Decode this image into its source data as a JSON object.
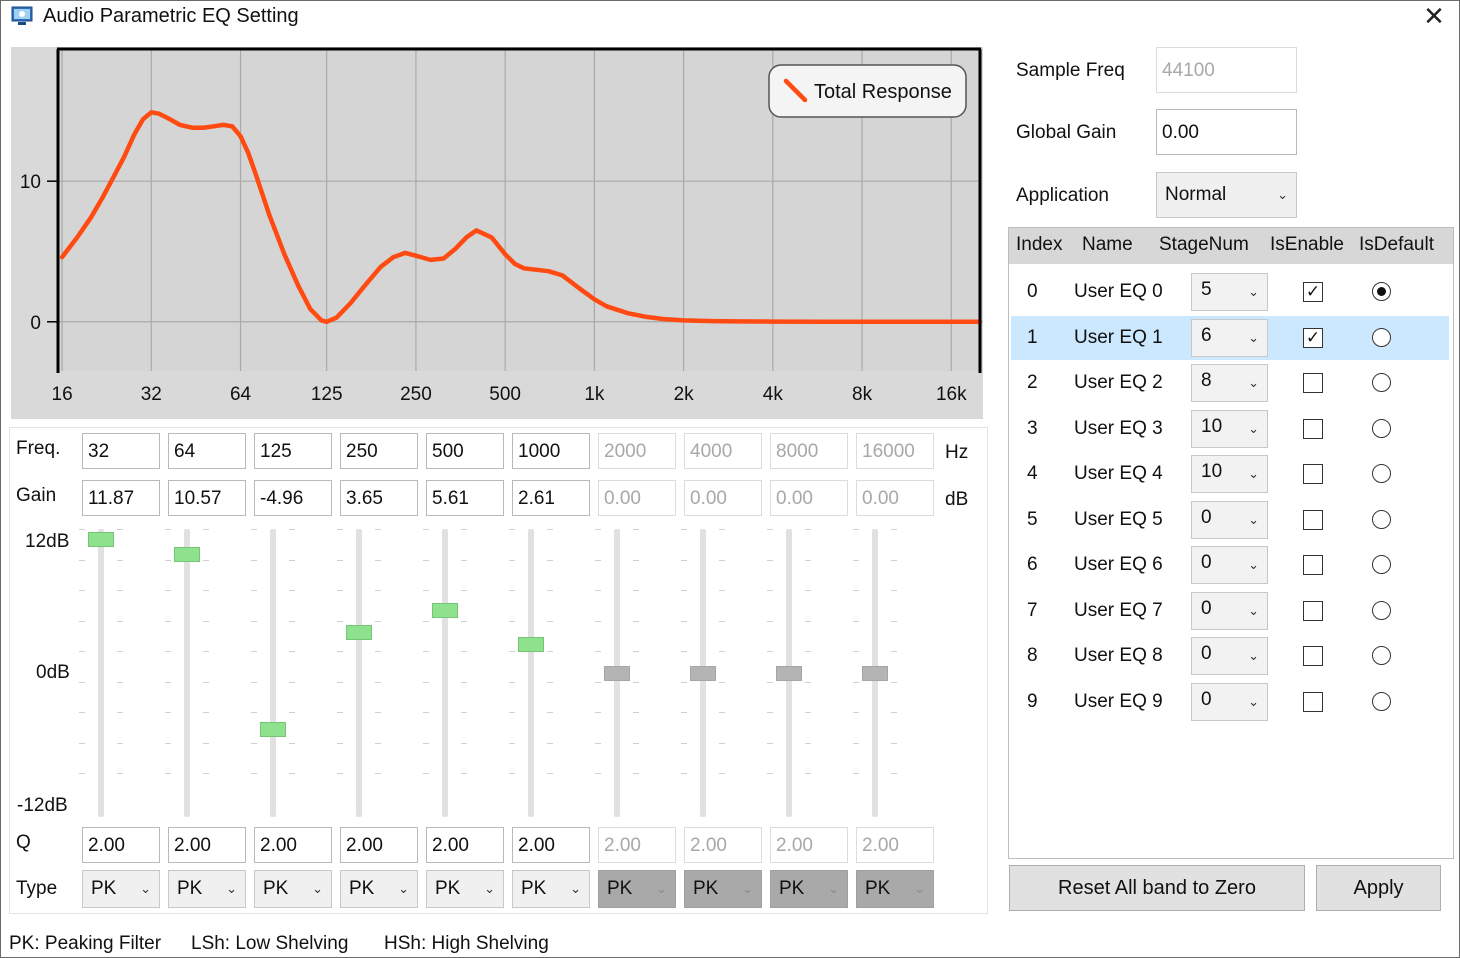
{
  "window": {
    "title": "Audio Parametric EQ Setting",
    "close_label": "✕"
  },
  "chart_data": {
    "type": "line",
    "legend": "top-right",
    "series": [
      {
        "name": "Total Response",
        "color": "#ff4a11",
        "x": [
          16,
          18,
          20,
          22,
          24,
          26,
          28,
          30,
          32,
          34,
          37,
          40,
          44,
          48,
          52,
          56,
          60,
          64,
          68,
          72,
          80,
          90,
          100,
          110,
          120,
          125,
          135,
          150,
          170,
          190,
          210,
          230,
          250,
          280,
          310,
          340,
          370,
          400,
          450,
          500,
          540,
          580,
          640,
          700,
          780,
          900,
          1000,
          1100,
          1300,
          1500,
          1700,
          2000,
          2500,
          3000,
          4000,
          6000,
          8000,
          12000,
          16000,
          20000
        ],
        "y": [
          4.6,
          6.0,
          7.4,
          8.9,
          10.4,
          11.8,
          13.3,
          14.4,
          14.9,
          14.8,
          14.4,
          14.0,
          13.8,
          13.8,
          13.9,
          14.0,
          13.9,
          13.2,
          12.0,
          10.5,
          7.6,
          4.8,
          2.6,
          0.9,
          0.1,
          0.0,
          0.3,
          1.3,
          2.7,
          3.9,
          4.6,
          4.9,
          4.7,
          4.4,
          4.5,
          5.2,
          6.0,
          6.5,
          6.0,
          4.8,
          4.1,
          3.8,
          3.7,
          3.6,
          3.3,
          2.3,
          1.6,
          1.1,
          0.6,
          0.35,
          0.2,
          0.1,
          0.05,
          0.03,
          0.01,
          0.0,
          0.0,
          0.0,
          0.0,
          0.0
        ]
      }
    ],
    "x_ticks": [
      "16",
      "32",
      "64",
      "125",
      "250",
      "500",
      "1k",
      "2k",
      "4k",
      "8k",
      "16k"
    ],
    "y_ticks": [
      "10",
      "0"
    ],
    "x_scale": "log",
    "xlim": [
      15.5,
      20000
    ],
    "ylim": [
      -3.5,
      19.4
    ],
    "grid": true
  },
  "bands": {
    "freq_label": "Freq.",
    "gain_label": "Gain",
    "q_label": "Q",
    "type_label": "Type",
    "hz_unit": "Hz",
    "db_unit": "dB",
    "scale_top": "12dB",
    "scale_mid": "0dB",
    "scale_bottom": "-12dB",
    "items": [
      {
        "freq": "32",
        "gain": "11.87",
        "gain_value": 11.87,
        "q": "2.00",
        "type": "PK",
        "enabled": true
      },
      {
        "freq": "64",
        "gain": "10.57",
        "gain_value": 10.57,
        "q": "2.00",
        "type": "PK",
        "enabled": true
      },
      {
        "freq": "125",
        "gain": "-4.96",
        "gain_value": -4.96,
        "q": "2.00",
        "type": "PK",
        "enabled": true
      },
      {
        "freq": "250",
        "gain": "3.65",
        "gain_value": 3.65,
        "q": "2.00",
        "type": "PK",
        "enabled": true
      },
      {
        "freq": "500",
        "gain": "5.61",
        "gain_value": 5.61,
        "q": "2.00",
        "type": "PK",
        "enabled": true
      },
      {
        "freq": "1000",
        "gain": "2.61",
        "gain_value": 2.61,
        "q": "2.00",
        "type": "PK",
        "enabled": true
      },
      {
        "freq": "2000",
        "gain": "0.00",
        "gain_value": 0,
        "q": "2.00",
        "type": "PK",
        "enabled": false
      },
      {
        "freq": "4000",
        "gain": "0.00",
        "gain_value": 0,
        "q": "2.00",
        "type": "PK",
        "enabled": false
      },
      {
        "freq": "8000",
        "gain": "0.00",
        "gain_value": 0,
        "q": "2.00",
        "type": "PK",
        "enabled": false
      },
      {
        "freq": "16000",
        "gain": "0.00",
        "gain_value": 0,
        "q": "2.00",
        "type": "PK",
        "enabled": false
      }
    ]
  },
  "footer": {
    "pk": "PK: Peaking Filter",
    "lsh": "LSh: Low Shelving",
    "hsh": "HSh: High Shelving"
  },
  "settings": {
    "sample_freq_label": "Sample Freq",
    "sample_freq_value": "44100",
    "global_gain_label": "Global Gain",
    "global_gain_value": "0.00",
    "application_label": "Application",
    "application_value": "Normal"
  },
  "table": {
    "headers": {
      "index": "Index",
      "name": "Name",
      "stage": "StageNum",
      "enable": "IsEnable",
      "default": "IsDefault"
    },
    "selected_row": 1,
    "rows": [
      {
        "index": "0",
        "name": "User EQ 0",
        "stage": "5",
        "enabled": true,
        "default": true
      },
      {
        "index": "1",
        "name": "User EQ 1",
        "stage": "6",
        "enabled": true,
        "default": false
      },
      {
        "index": "2",
        "name": "User EQ 2",
        "stage": "8",
        "enabled": false,
        "default": false
      },
      {
        "index": "3",
        "name": "User EQ 3",
        "stage": "10",
        "enabled": false,
        "default": false
      },
      {
        "index": "4",
        "name": "User EQ 4",
        "stage": "10",
        "enabled": false,
        "default": false
      },
      {
        "index": "5",
        "name": "User EQ 5",
        "stage": "0",
        "enabled": false,
        "default": false
      },
      {
        "index": "6",
        "name": "User EQ 6",
        "stage": "0",
        "enabled": false,
        "default": false
      },
      {
        "index": "7",
        "name": "User EQ 7",
        "stage": "0",
        "enabled": false,
        "default": false
      },
      {
        "index": "8",
        "name": "User EQ 8",
        "stage": "0",
        "enabled": false,
        "default": false
      },
      {
        "index": "9",
        "name": "User EQ 9",
        "stage": "0",
        "enabled": false,
        "default": false
      }
    ]
  },
  "buttons": {
    "reset": "Reset All band to Zero",
    "apply": "Apply"
  }
}
